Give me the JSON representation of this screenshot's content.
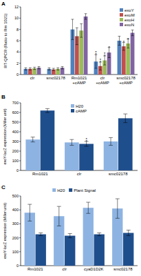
{
  "chart_data": [
    {
      "type": "bar",
      "title": "A",
      "y_label": "RT-QPCR (Ratio to Rm 1021)",
      "categories": [
        "clr",
        "smc02178",
        "Rm1021 +cAMP",
        "clr +cAMP",
        "smc02178 +cAMP"
      ],
      "series": [
        {
          "name": "exoY",
          "color": "#4f81bd",
          "values": [
            1.0,
            1.0,
            8.0,
            2.3,
            6.0
          ],
          "errors": [
            0.2,
            0.2,
            1.8,
            1.2,
            0.8
          ]
        },
        {
          "name": "exoM",
          "color": "#c0504d",
          "values": [
            1.0,
            0.9,
            6.8,
            1.5,
            5.0
          ],
          "errors": [
            0.2,
            0.2,
            1.5,
            0.7,
            0.7
          ]
        },
        {
          "name": "exoH",
          "color": "#9bbb59",
          "values": [
            1.1,
            1.0,
            7.8,
            2.5,
            5.5
          ],
          "errors": [
            0.2,
            0.2,
            1.2,
            0.8,
            0.8
          ]
        },
        {
          "name": "exoN",
          "color": "#8064a2",
          "values": [
            1.2,
            1.2,
            10.3,
            3.9,
            7.4
          ],
          "errors": [
            0.2,
            0.2,
            0.5,
            0.9,
            0.5
          ]
        }
      ],
      "ylim": [
        0,
        12
      ],
      "yticks": [
        0,
        2,
        4,
        6,
        8,
        10,
        12
      ],
      "grid": false,
      "legend": "upper right",
      "annotations": [
        {
          "text": "**",
          "series": 0,
          "category": 3
        },
        {
          "text": "**",
          "series": 1,
          "category": 3
        },
        {
          "text": "**",
          "series": 2,
          "category": 3
        },
        {
          "text": "*",
          "series": 3,
          "category": 3
        },
        {
          "text": "*",
          "series": 1,
          "category": 4
        },
        {
          "text": "*",
          "series": 2,
          "category": 4
        }
      ]
    },
    {
      "type": "bar",
      "title": "B",
      "y_label": "exoY-lacZ expression (Miller unit)",
      "categories": [
        "Rm1021",
        "clr",
        "smc02178"
      ],
      "series": [
        {
          "name": "H20",
          "color": "#8db3e2",
          "values": [
            320,
            290,
            300
          ],
          "errors": [
            25,
            30,
            40
          ]
        },
        {
          "name": "cAMP",
          "color": "#1f4e8c",
          "values": [
            620,
            275,
            540
          ],
          "errors": [
            20,
            25,
            45
          ]
        }
      ],
      "ylim": [
        0,
        700
      ],
      "yticks": [
        0,
        100,
        200,
        300,
        400,
        500,
        600,
        700
      ],
      "grid": false,
      "legend": "upper center",
      "annotations": [
        {
          "text": "**",
          "series": 1,
          "category": 1
        }
      ]
    },
    {
      "type": "bar",
      "title": "C",
      "y_label": "exoY-lacZ expression (Miller unit)",
      "categories": [
        "Rm1021",
        "clr",
        "cyaD1D2K",
        "smc02178"
      ],
      "series": [
        {
          "name": "H20",
          "color": "#8db3e2",
          "values": [
            380,
            355,
            415,
            410
          ],
          "errors": [
            60,
            70,
            40,
            70
          ]
        },
        {
          "name": "Plant Signal",
          "color": "#1f4e8c",
          "values": [
            225,
            215,
            225,
            235
          ],
          "errors": [
            10,
            15,
            10,
            20
          ]
        }
      ],
      "ylim": [
        0,
        500
      ],
      "yticks": [
        0,
        100,
        200,
        300,
        400,
        500
      ],
      "grid": false,
      "legend": "top"
    }
  ]
}
